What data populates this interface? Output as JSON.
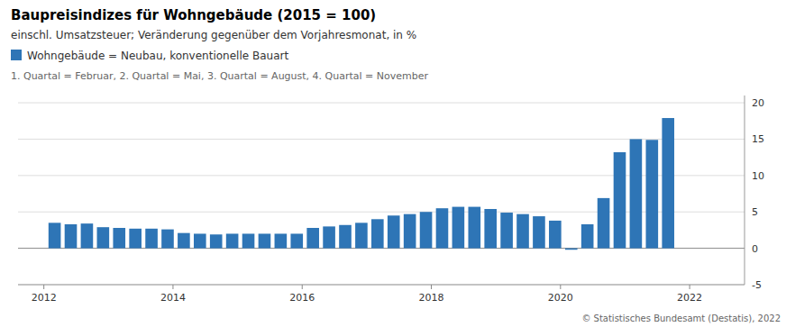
{
  "chart_data": {
    "type": "bar",
    "title": "Baupreisindizes für Wohngebäude (2015 = 100)",
    "subtitle": "einschl. Umsatzsteuer; Veränderung gegenüber dem Vorjahresmonat, in %",
    "annotations": [
      "1. Quartal = Februar, 2. Quartal = Mai, 3. Quartal = August, 4. Quartal = November",
      "© Statistisches Bundesamt (Destatis), 2022"
    ],
    "x": [
      2012.1666666666667,
      2012.4166666666667,
      2012.6666666666667,
      2012.9166666666667,
      2013.1666666666667,
      2013.4166666666667,
      2013.6666666666667,
      2013.9166666666667,
      2014.1666666666667,
      2014.4166666666667,
      2014.6666666666667,
      2014.9166666666667,
      2015.1666666666667,
      2015.4166666666667,
      2015.6666666666667,
      2015.9166666666667,
      2016.1666666666667,
      2016.4166666666667,
      2016.6666666666667,
      2016.9166666666667,
      2017.1666666666667,
      2017.4166666666667,
      2017.6666666666667,
      2017.9166666666667,
      2018.1666666666667,
      2018.4166666666667,
      2018.6666666666667,
      2018.9166666666667,
      2019.1666666666667,
      2019.4166666666667,
      2019.6666666666667,
      2019.9166666666667,
      2020.1666666666667,
      2020.4166666666667,
      2020.6666666666667,
      2020.9166666666667,
      2021.1666666666667,
      2021.4166666666667,
      2021.6666666666667
    ],
    "series": [
      {
        "name": "Wohngebäude = Neubau, konventionelle Bauart",
        "color": "#2E75B6",
        "values": [
          3.5,
          3.3,
          3.4,
          2.9,
          2.8,
          2.7,
          2.7,
          2.6,
          2.1,
          2.0,
          1.9,
          2.0,
          2.0,
          2.0,
          2.0,
          2.0,
          2.8,
          3.0,
          3.2,
          3.5,
          4.0,
          4.5,
          4.7,
          5.0,
          5.5,
          5.7,
          5.7,
          5.4,
          4.9,
          4.7,
          4.4,
          3.8,
          -0.2,
          3.3,
          6.9,
          13.2,
          15.0,
          14.9,
          17.9
        ]
      }
    ],
    "xlim": [
      2011.6,
      2022.85
    ],
    "xticks": [
      2012,
      2014,
      2016,
      2018,
      2020,
      2022
    ],
    "ylim": [
      -5,
      21
    ],
    "yticks": [
      -5,
      0,
      5,
      10,
      15,
      20
    ],
    "grid": true,
    "legend": "top"
  }
}
